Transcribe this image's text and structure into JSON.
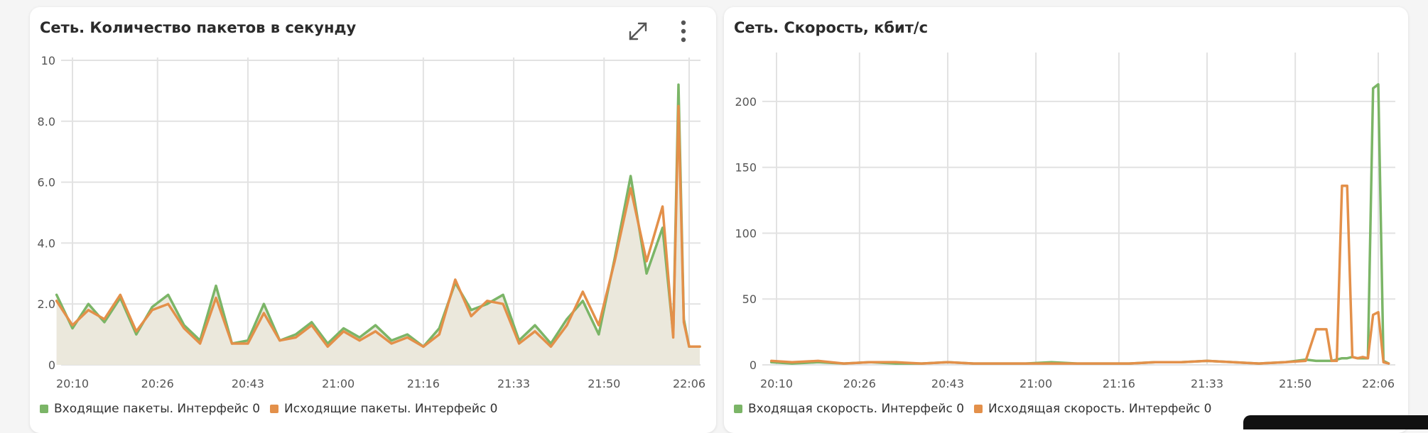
{
  "panels": [
    {
      "title": "Сеть. Количество пакетов в секунду",
      "icons": {
        "expand": "expand-icon",
        "more": "more-vertical-icon"
      },
      "legend": [
        "Входящие пакеты. Интерфейс 0",
        "Исходящие пакеты. Интерфейс 0"
      ]
    },
    {
      "title": "Сеть. Скорость, кбит/с",
      "legend": [
        "Входящая скорость. Интерфейс 0",
        "Исходящая скорость. Интерфейс 0"
      ]
    }
  ],
  "colors": {
    "incoming": "#7bb567",
    "outgoing": "#e3904a",
    "area": "#ebe8dc"
  },
  "chart_data": [
    {
      "type": "line",
      "title": "Сеть. Количество пакетов в секунду",
      "x_ticks": [
        "20:10",
        "20:26",
        "20:43",
        "21:00",
        "21:16",
        "21:33",
        "21:50",
        "22:06"
      ],
      "y_ticks": [
        "10",
        "8.0",
        "6.0",
        "4.0",
        "2.0",
        "0"
      ],
      "ylim": [
        0,
        10
      ],
      "grid": true,
      "legend_position": "bottom-left",
      "x": [
        "20:07",
        "20:10",
        "20:13",
        "20:16",
        "20:19",
        "20:22",
        "20:25",
        "20:28",
        "20:31",
        "20:34",
        "20:37",
        "20:40",
        "20:43",
        "20:46",
        "20:49",
        "20:52",
        "20:55",
        "20:58",
        "21:01",
        "21:04",
        "21:07",
        "21:10",
        "21:13",
        "21:16",
        "21:19",
        "21:22",
        "21:25",
        "21:28",
        "21:31",
        "21:34",
        "21:37",
        "21:40",
        "21:43",
        "21:46",
        "21:49",
        "21:52",
        "21:55",
        "21:58",
        "22:01",
        "22:03",
        "22:04",
        "22:05",
        "22:06",
        "22:08"
      ],
      "series": [
        {
          "name": "Входящие пакеты. Интерфейс 0",
          "color": "#7bb567",
          "values": [
            2.3,
            1.2,
            2.0,
            1.4,
            2.2,
            1.0,
            1.9,
            2.3,
            1.3,
            0.8,
            2.6,
            0.7,
            0.8,
            2.0,
            0.8,
            1.0,
            1.4,
            0.7,
            1.2,
            0.9,
            1.3,
            0.8,
            1.0,
            0.6,
            1.2,
            2.7,
            1.8,
            2.0,
            2.3,
            0.8,
            1.3,
            0.7,
            1.5,
            2.1,
            1.0,
            3.5,
            6.2,
            3.0,
            4.5,
            1.0,
            9.2,
            1.5,
            0.6,
            0.6
          ]
        },
        {
          "name": "Исходящие пакеты. Интерфейс 0",
          "color": "#e3904a",
          "values": [
            2.1,
            1.3,
            1.8,
            1.5,
            2.3,
            1.1,
            1.8,
            2.0,
            1.2,
            0.7,
            2.2,
            0.7,
            0.7,
            1.7,
            0.8,
            0.9,
            1.3,
            0.6,
            1.1,
            0.8,
            1.1,
            0.7,
            0.9,
            0.6,
            1.0,
            2.8,
            1.6,
            2.1,
            2.0,
            0.7,
            1.1,
            0.6,
            1.3,
            2.4,
            1.3,
            3.4,
            5.8,
            3.4,
            5.2,
            0.9,
            8.5,
            1.4,
            0.6,
            0.6
          ]
        }
      ]
    },
    {
      "type": "line",
      "title": "Сеть. Скорость, кбит/с",
      "x_ticks": [
        "20:10",
        "20:26",
        "20:43",
        "21:00",
        "21:16",
        "21:33",
        "21:50",
        "22:06"
      ],
      "y_ticks": [
        "200",
        "150",
        "100",
        "50",
        "0"
      ],
      "ylim": [
        0,
        235
      ],
      "grid": true,
      "legend_position": "bottom-left",
      "x": [
        "20:09",
        "20:13",
        "20:18",
        "20:23",
        "20:28",
        "20:33",
        "20:38",
        "20:43",
        "20:48",
        "20:53",
        "20:58",
        "21:03",
        "21:08",
        "21:13",
        "21:18",
        "21:23",
        "21:28",
        "21:33",
        "21:38",
        "21:43",
        "21:48",
        "21:52",
        "21:54",
        "21:56",
        "21:57",
        "21:58",
        "21:59",
        "22:00",
        "22:01",
        "22:02",
        "22:03",
        "22:04",
        "22:05",
        "22:06",
        "22:07",
        "22:08"
      ],
      "series": [
        {
          "name": "Входящая скорость. Интерфейс 0",
          "color": "#7bb567",
          "values": [
            2,
            1,
            2,
            1,
            2,
            1,
            1,
            2,
            1,
            1,
            1,
            2,
            1,
            1,
            1,
            2,
            2,
            3,
            2,
            1,
            2,
            4,
            3,
            3,
            3,
            4,
            5,
            5,
            6,
            5,
            5,
            5,
            210,
            213,
            3,
            1
          ]
        },
        {
          "name": "Исходящая скорость. Интерфейс 0",
          "color": "#e3904a",
          "values": [
            3,
            2,
            3,
            1,
            2,
            2,
            1,
            2,
            1,
            1,
            1,
            1,
            1,
            1,
            1,
            2,
            2,
            3,
            2,
            1,
            2,
            3,
            27,
            27,
            3,
            3,
            136,
            136,
            6,
            5,
            6,
            5,
            38,
            40,
            2,
            1
          ]
        }
      ]
    }
  ]
}
